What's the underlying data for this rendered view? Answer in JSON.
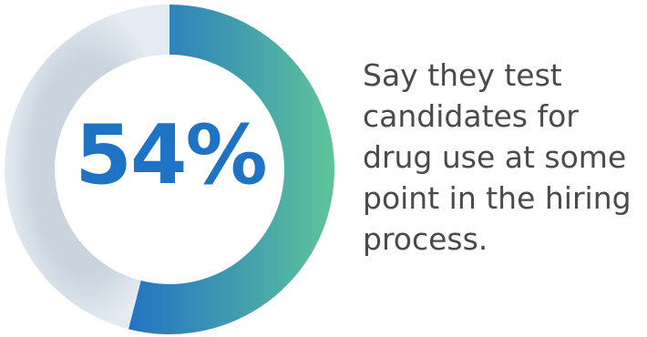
{
  "chart_data": {
    "type": "pie",
    "variant": "donut",
    "value_label": "54%",
    "slices": [
      {
        "value": 54,
        "color_start": "#2272c3",
        "color_end": "#5ec49a"
      },
      {
        "value": 46,
        "color": "#dbe3ec"
      }
    ]
  },
  "caption": "Say they test candidates for drug use at some point in the hiring process.",
  "colors": {
    "accent": "#1f73c4",
    "track": "#dbe3ec",
    "gradient_end": "#5ec49a",
    "caption_text": "#4a4a4a"
  }
}
